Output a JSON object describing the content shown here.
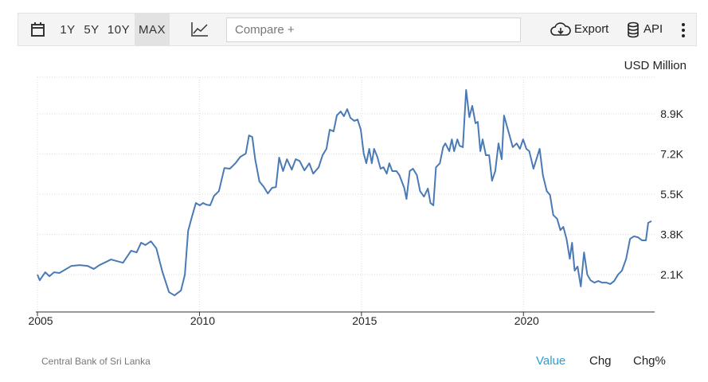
{
  "toolbar": {
    "ranges": [
      "1Y",
      "5Y",
      "10Y",
      "MAX"
    ],
    "compare": "Compare +",
    "export": "Export",
    "api": "API"
  },
  "chart_data": {
    "type": "line",
    "unit_label": "USD Million",
    "color": "#4a7ab5",
    "grid": true,
    "xlim": [
      2004.95,
      2024.0
    ],
    "xticks": [
      2005,
      2010,
      2015,
      2020
    ],
    "ylim": [
      520,
      10450
    ],
    "yticks": [
      {
        "value": 2100,
        "label": "2.1K"
      },
      {
        "value": 3800,
        "label": "3.8K"
      },
      {
        "value": 5500,
        "label": "5.5K"
      },
      {
        "value": 7200,
        "label": "7.2K"
      },
      {
        "value": 8900,
        "label": "8.9K"
      }
    ],
    "x": [
      2005.0,
      2005.07,
      2005.24,
      2005.37,
      2005.51,
      2005.68,
      2006.05,
      2006.3,
      2006.54,
      2006.74,
      2006.91,
      2007.27,
      2007.64,
      2007.89,
      2008.06,
      2008.2,
      2008.33,
      2008.5,
      2008.67,
      2008.86,
      2009.06,
      2009.23,
      2009.43,
      2009.55,
      2009.65,
      2009.77,
      2009.89,
      2010.01,
      2010.11,
      2010.21,
      2010.33,
      2010.45,
      2010.6,
      2010.77,
      2010.94,
      2011.11,
      2011.26,
      2011.43,
      2011.53,
      2011.63,
      2011.72,
      2011.85,
      2011.99,
      2012.11,
      2012.24,
      2012.36,
      2012.46,
      2012.58,
      2012.7,
      2012.85,
      2012.97,
      2013.09,
      2013.24,
      2013.39,
      2013.51,
      2013.68,
      2013.8,
      2013.92,
      2014.02,
      2014.14,
      2014.24,
      2014.36,
      2014.46,
      2014.56,
      2014.66,
      2014.78,
      2014.88,
      2014.98,
      2015.07,
      2015.15,
      2015.24,
      2015.32,
      2015.39,
      2015.49,
      2015.59,
      2015.68,
      2015.78,
      2015.86,
      2015.95,
      2016.08,
      2016.17,
      2016.32,
      2016.39,
      2016.49,
      2016.59,
      2016.71,
      2016.81,
      2016.93,
      2017.05,
      2017.13,
      2017.22,
      2017.3,
      2017.42,
      2017.52,
      2017.59,
      2017.71,
      2017.79,
      2017.86,
      2017.96,
      2018.03,
      2018.13,
      2018.23,
      2018.33,
      2018.42,
      2018.52,
      2018.59,
      2018.67,
      2018.74,
      2018.84,
      2018.94,
      2019.03,
      2019.13,
      2019.23,
      2019.33,
      2019.4,
      2019.5,
      2019.57,
      2019.67,
      2019.79,
      2019.89,
      2019.99,
      2020.09,
      2020.18,
      2020.31,
      2020.4,
      2020.5,
      2020.6,
      2020.72,
      2020.82,
      2020.92,
      2021.04,
      2021.14,
      2021.23,
      2021.33,
      2021.43,
      2021.5,
      2021.58,
      2021.67,
      2021.77,
      2021.87,
      2021.97,
      2022.07,
      2022.19,
      2022.31,
      2022.43,
      2022.56,
      2022.68,
      2022.8,
      2022.92,
      2023.04,
      2023.17,
      2023.29,
      2023.41,
      2023.53,
      2023.66,
      2023.78,
      2023.85,
      2023.95
    ],
    "values": [
      2100,
      1860,
      2200,
      2030,
      2200,
      2170,
      2470,
      2500,
      2470,
      2340,
      2500,
      2740,
      2600,
      3110,
      3040,
      3450,
      3350,
      3510,
      3210,
      2200,
      1360,
      1220,
      1430,
      2100,
      3950,
      4560,
      5130,
      5030,
      5130,
      5060,
      5030,
      5430,
      5630,
      6610,
      6580,
      6810,
      7080,
      7220,
      7990,
      7920,
      6980,
      6040,
      5800,
      5530,
      5770,
      5800,
      7050,
      6480,
      6980,
      6540,
      6980,
      6910,
      6510,
      6810,
      6370,
      6640,
      7150,
      7420,
      8230,
      8160,
      8830,
      9000,
      8800,
      9100,
      8730,
      8600,
      8660,
      8230,
      7220,
      6810,
      7420,
      6810,
      7420,
      7080,
      6580,
      6640,
      6370,
      6810,
      6480,
      6480,
      6310,
      5770,
      5300,
      6480,
      6580,
      6310,
      5630,
      5400,
      5740,
      5130,
      5030,
      6640,
      6810,
      7490,
      7650,
      7320,
      7820,
      7320,
      7820,
      7550,
      7490,
      9910,
      8760,
      9240,
      8500,
      8560,
      7320,
      7820,
      7150,
      7150,
      6070,
      6480,
      7650,
      6980,
      8830,
      8330,
      7990,
      7490,
      7650,
      7420,
      7820,
      7420,
      7320,
      6580,
      6980,
      7420,
      6310,
      5630,
      5470,
      4620,
      4460,
      3980,
      4120,
      3610,
      2770,
      3450,
      2270,
      2440,
      1600,
      3040,
      2100,
      1860,
      1760,
      1830,
      1760,
      1760,
      1700,
      1830,
      2100,
      2270,
      2770,
      3610,
      3720,
      3680,
      3550,
      3550,
      4290,
      4360
    ]
  },
  "footer": {
    "source": "Central Bank of Sri Lanka",
    "tabs": [
      "Value",
      "Chg",
      "Chg%"
    ]
  }
}
